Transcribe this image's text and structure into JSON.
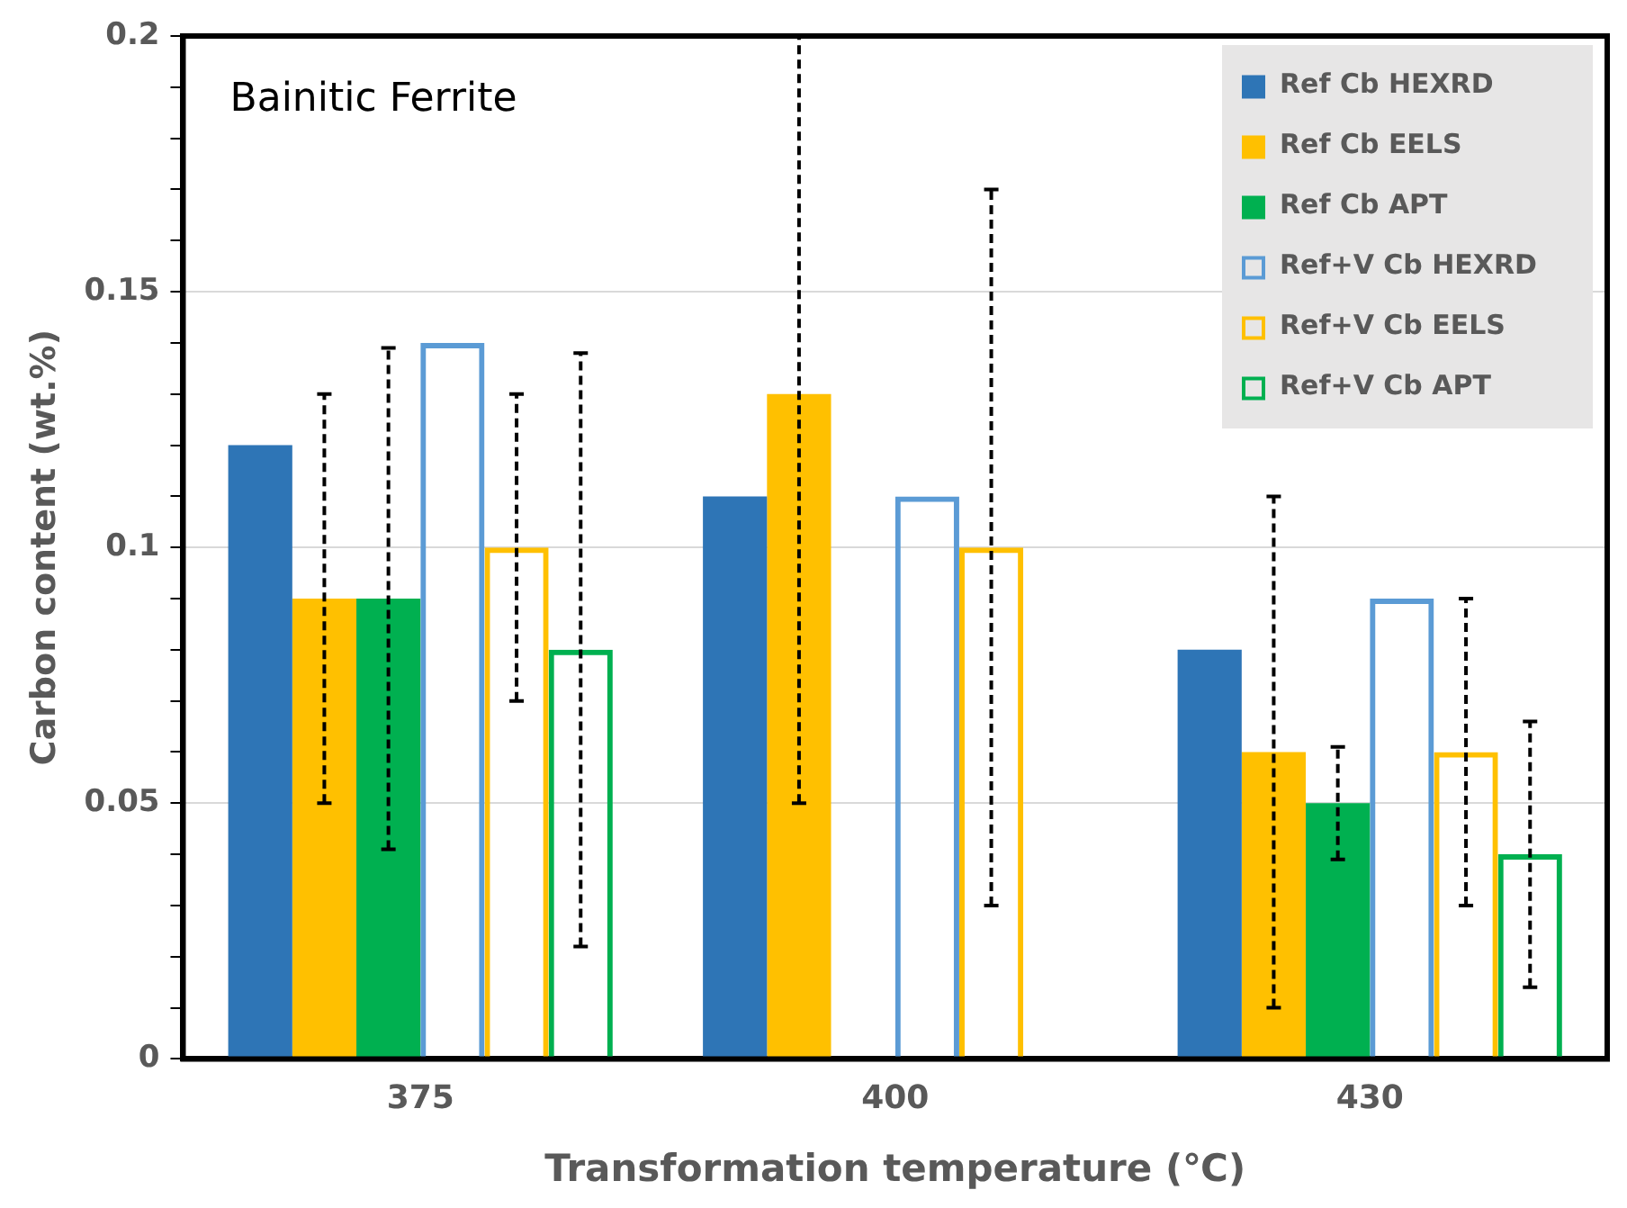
{
  "chart_data": {
    "type": "bar",
    "title": "Bainitic Ferrite",
    "xlabel": "Transformation temperature (℃)",
    "ylabel": "Carbon content (wt.%)",
    "categories": [
      "375",
      "400",
      "430"
    ],
    "series": [
      {
        "name": "Ref Cb HEXRD",
        "color": "#2e75b6",
        "values": [
          0.12,
          0.11,
          0.08
        ]
      },
      {
        "name": "Ref Cb EELS",
        "color": "#ffc000",
        "values": [
          0.09,
          0.13,
          0.06
        ],
        "errors": [
          [
            0.05,
            0.13
          ],
          [
            0.05,
            0.2
          ],
          [
            0.01,
            0.11
          ]
        ]
      },
      {
        "name": "Ref Cb APT",
        "color": "#00b050",
        "values": [
          0.09,
          null,
          0.05
        ],
        "errors": [
          [
            0.041,
            0.139
          ],
          null,
          [
            0.039,
            0.061
          ]
        ]
      },
      {
        "name": "Ref+V Cb HEXRD",
        "color": "#5b9bd5",
        "values": [
          0.14,
          0.11,
          0.09
        ]
      },
      {
        "name": "Ref+V Cb EELS",
        "color": "#ffc000",
        "values": [
          0.1,
          0.1,
          0.06
        ],
        "errors": [
          [
            0.07,
            0.13
          ],
          [
            0.03,
            0.17
          ],
          [
            0.03,
            0.09
          ]
        ]
      },
      {
        "name": "Ref+V Cb APT",
        "color": "#00b050",
        "values": [
          0.08,
          null,
          0.04
        ],
        "errors": [
          [
            0.022,
            0.138
          ],
          null,
          [
            0.014,
            0.066
          ]
        ]
      }
    ],
    "ylim": [
      0,
      0.2
    ],
    "yticks": [
      0,
      {
        "value": 0.01,
        "label": null
      },
      {
        "value": 0.02,
        "label": null
      },
      {
        "value": 0.03,
        "label": null
      },
      {
        "value": 0.04,
        "label": null
      },
      0.05,
      {
        "value": 0.06,
        "label": null
      },
      {
        "value": 0.07,
        "label": null
      },
      {
        "value": 0.08,
        "label": null
      },
      {
        "value": 0.09,
        "label": null
      },
      0.1,
      {
        "value": 0.11,
        "label": null
      },
      {
        "value": 0.12,
        "label": null
      },
      {
        "value": 0.13,
        "label": null
      },
      {
        "value": 0.14,
        "label": null
      },
      0.15,
      {
        "value": 0.16,
        "label": null
      },
      {
        "value": 0.17,
        "label": null
      },
      {
        "value": 0.18,
        "label": null
      },
      {
        "value": 0.19,
        "label": null
      },
      0.2
    ],
    "grid": "y",
    "legend": "top right"
  }
}
